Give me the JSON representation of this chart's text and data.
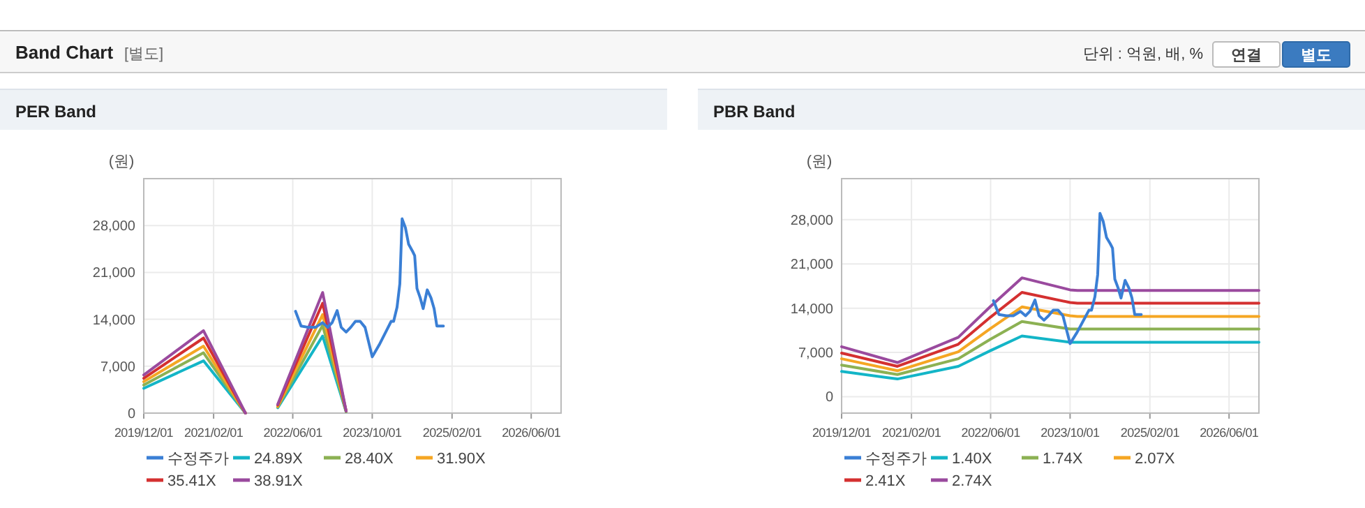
{
  "chart_data": [
    {
      "type": "other",
      "title": "Band Chart",
      "subtitle": "[별도]",
      "annotations": [
        "단위 : 억원, 배, %",
        "연결",
        "별도"
      ]
    },
    {
      "type": "line",
      "title": "PER Band",
      "ylabel": "(원)",
      "xlim": [
        "2019-12-01",
        "2026-12-01"
      ],
      "ylim": [
        0,
        35000
      ],
      "xticks": [
        {
          "value": "2019-12-01",
          "label": "2019/12/01"
        },
        {
          "value": "2021-02-01",
          "label": "2021/02/01"
        },
        {
          "value": "2022-06-01",
          "label": "2022/06/01"
        },
        {
          "value": "2023-10-01",
          "label": "2023/10/01"
        },
        {
          "value": "2025-02-01",
          "label": "2025/02/01"
        },
        {
          "value": "2026-06-01",
          "label": "2026/06/01"
        }
      ],
      "yticks": [
        0,
        {
          "value": 7000,
          "label": "7,000"
        },
        {
          "value": 14000,
          "label": "14,000"
        },
        {
          "value": 21000,
          "label": "21,000"
        },
        {
          "value": 28000,
          "label": "28,000"
        }
      ],
      "grid": true,
      "legend": "bottom",
      "marker": "none",
      "line_style": "solid",
      "x": [
        "2019-12-01",
        "2020-12-01",
        "2021-08-15",
        "2022-01-01",
        "2022-03-01",
        "2022-12-01",
        "2023-04-24"
      ],
      "series": [
        {
          "name": "수정주가",
          "color": "#3a7fd5",
          "x": [
            "2022-06-18",
            "2022-07-22",
            "2022-09-05",
            "2022-10-18",
            "2022-12-01",
            "2023-01-01",
            "2023-01-28",
            "2023-02-28",
            "2023-03-25",
            "2023-04-24",
            "2023-05-22",
            "2023-06-20",
            "2023-07-19",
            "2023-08-18",
            "2023-10-01",
            "2023-11-13",
            "2023-12-27",
            "2024-01-25",
            "2024-02-09",
            "2024-03-01",
            "2024-03-18",
            "2024-04-01",
            "2024-04-21",
            "2024-05-11",
            "2024-06-03",
            "2024-06-17",
            "2024-07-01",
            "2024-07-21",
            "2024-08-08",
            "2024-09-02",
            "2024-09-25",
            "2024-10-14",
            "2024-10-31",
            "2024-12-10"
          ],
          "values": [
            15200,
            13000,
            12800,
            12800,
            13500,
            12800,
            13500,
            15300,
            12800,
            12100,
            12800,
            13700,
            13700,
            12800,
            8400,
            10200,
            12300,
            13700,
            13700,
            15800,
            19300,
            29000,
            27700,
            25200,
            24200,
            23500,
            18600,
            17200,
            15600,
            18400,
            17200,
            15600,
            13000,
            13000
          ]
        },
        {
          "name": "24.89X",
          "color": "#13b5c7",
          "values": [
            3700,
            7800,
            0,
            null,
            800,
            11500,
            200
          ]
        },
        {
          "name": "28.40X",
          "color": "#8cb153",
          "values": [
            4200,
            9000,
            0,
            null,
            900,
            13100,
            200
          ]
        },
        {
          "name": "31.90X",
          "color": "#f5a623",
          "values": [
            4700,
            10000,
            0,
            null,
            1000,
            14700,
            300
          ]
        },
        {
          "name": "35.41X",
          "color": "#d43030",
          "values": [
            5200,
            11200,
            0,
            null,
            1200,
            16400,
            300
          ]
        },
        {
          "name": "38.91X",
          "color": "#9a4a9e",
          "values": [
            5700,
            12300,
            0,
            null,
            1300,
            18000,
            300
          ]
        }
      ]
    },
    {
      "type": "line",
      "title": "PBR Band",
      "ylabel": "(원)",
      "xlim": [
        "2019-12-01",
        "2026-12-01"
      ],
      "ylim": [
        -2600,
        34500
      ],
      "xticks": [
        {
          "value": "2019-12-01",
          "label": "2019/12/01"
        },
        {
          "value": "2021-02-01",
          "label": "2021/02/01"
        },
        {
          "value": "2022-06-01",
          "label": "2022/06/01"
        },
        {
          "value": "2023-10-01",
          "label": "2023/10/01"
        },
        {
          "value": "2025-02-01",
          "label": "2025/02/01"
        },
        {
          "value": "2026-06-01",
          "label": "2026/06/01"
        }
      ],
      "yticks": [
        0,
        {
          "value": 7000,
          "label": "7,000"
        },
        {
          "value": 14000,
          "label": "14,000"
        },
        {
          "value": 21000,
          "label": "21,000"
        },
        {
          "value": 28000,
          "label": "28,000"
        }
      ],
      "grid": true,
      "legend": "bottom",
      "marker": "none",
      "line_style": "solid",
      "x": [
        "2019-12-01",
        "2020-11-07",
        "2021-11-15",
        "2022-06-01",
        "2022-12-10",
        "2023-10-01",
        "2023-11-15",
        "2026-12-01"
      ],
      "series": [
        {
          "name": "수정주가",
          "color": "#3a7fd5",
          "x": [
            "2022-06-18",
            "2022-07-22",
            "2022-09-05",
            "2022-10-18",
            "2022-12-01",
            "2023-01-01",
            "2023-01-28",
            "2023-02-28",
            "2023-03-25",
            "2023-04-24",
            "2023-05-22",
            "2023-06-20",
            "2023-07-19",
            "2023-08-18",
            "2023-10-01",
            "2023-11-13",
            "2023-12-27",
            "2024-01-25",
            "2024-02-09",
            "2024-03-01",
            "2024-03-18",
            "2024-04-01",
            "2024-04-21",
            "2024-05-11",
            "2024-06-03",
            "2024-06-17",
            "2024-07-01",
            "2024-07-21",
            "2024-08-08",
            "2024-09-02",
            "2024-09-25",
            "2024-10-14",
            "2024-10-31",
            "2024-12-10"
          ],
          "values": [
            15200,
            13000,
            12800,
            12800,
            13500,
            12800,
            13500,
            15300,
            12800,
            12100,
            12800,
            13700,
            13700,
            12800,
            8400,
            10200,
            12300,
            13700,
            13700,
            15800,
            19300,
            29000,
            27700,
            25200,
            24200,
            23500,
            18600,
            17200,
            15600,
            18400,
            17200,
            15600,
            13000,
            13000
          ]
        },
        {
          "name": "1.40X",
          "color": "#13b5c7",
          "values": [
            4000,
            2800,
            4800,
            7300,
            9600,
            8600,
            8600,
            8600
          ]
        },
        {
          "name": "1.74X",
          "color": "#8cb153",
          "values": [
            5000,
            3500,
            6000,
            9100,
            11900,
            10700,
            10700,
            10700
          ]
        },
        {
          "name": "2.07X",
          "color": "#f5a623",
          "values": [
            6000,
            4100,
            7100,
            10800,
            14200,
            12800,
            12700,
            12700
          ]
        },
        {
          "name": "2.41X",
          "color": "#d43030",
          "values": [
            6900,
            4800,
            8300,
            12600,
            16500,
            14900,
            14800,
            14800
          ]
        },
        {
          "name": "2.74X",
          "color": "#9a4a9e",
          "values": [
            7900,
            5400,
            9400,
            14300,
            18800,
            16900,
            16800,
            16800
          ]
        }
      ]
    }
  ]
}
